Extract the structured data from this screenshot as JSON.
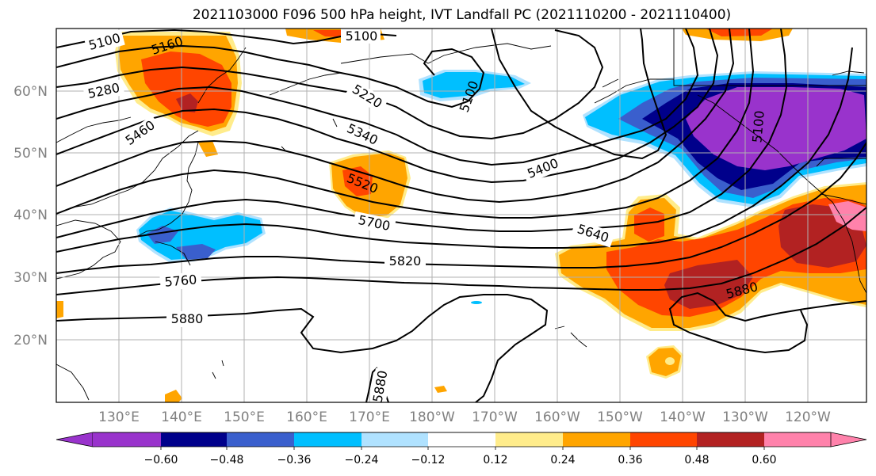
{
  "title": "2021103000 F096 500 hPa height, IVT Landfall PC (2021110200 - 2021110400)",
  "lat_labels": [
    "60°N",
    "50°N",
    "40°N",
    "30°N",
    "20°N"
  ],
  "lon_labels": [
    "130°E",
    "140°E",
    "150°E",
    "160°E",
    "170°E",
    "180°W",
    "170°W",
    "160°W",
    "150°W",
    "140°W",
    "130°W",
    "120°W"
  ],
  "colorbar": {
    "ticks": [
      "−0.60",
      "−0.48",
      "−0.36",
      "−0.24",
      "−0.12",
      "0.12",
      "0.24",
      "0.36",
      "0.48",
      "0.60"
    ],
    "colors": [
      "#9933cc",
      "#00008b",
      "#3a5fcd",
      "#00bfff",
      "#b0e2ff",
      "#ffffff",
      "#ffec8b",
      "#ffa500",
      "#ff4500",
      "#b22222",
      "#ff82ab"
    ]
  },
  "contour_labels": [
    "5100",
    "5160",
    "5100",
    "5280",
    "5220",
    "5100",
    "5460",
    "5340",
    "5400",
    "5520",
    "5700",
    "5640",
    "5820",
    "5760",
    "5880",
    "5880",
    "5880",
    "5100"
  ],
  "palette": {
    "purple": "#9933cc",
    "navy": "#00008b",
    "blue": "#3a5fcd",
    "cyan": "#00bfff",
    "lightblue": "#b0e2ff",
    "yellow": "#ffec8b",
    "orange": "#ffa500",
    "redorange": "#ff4500",
    "darkred": "#b22222",
    "pink": "#ff82ab"
  }
}
